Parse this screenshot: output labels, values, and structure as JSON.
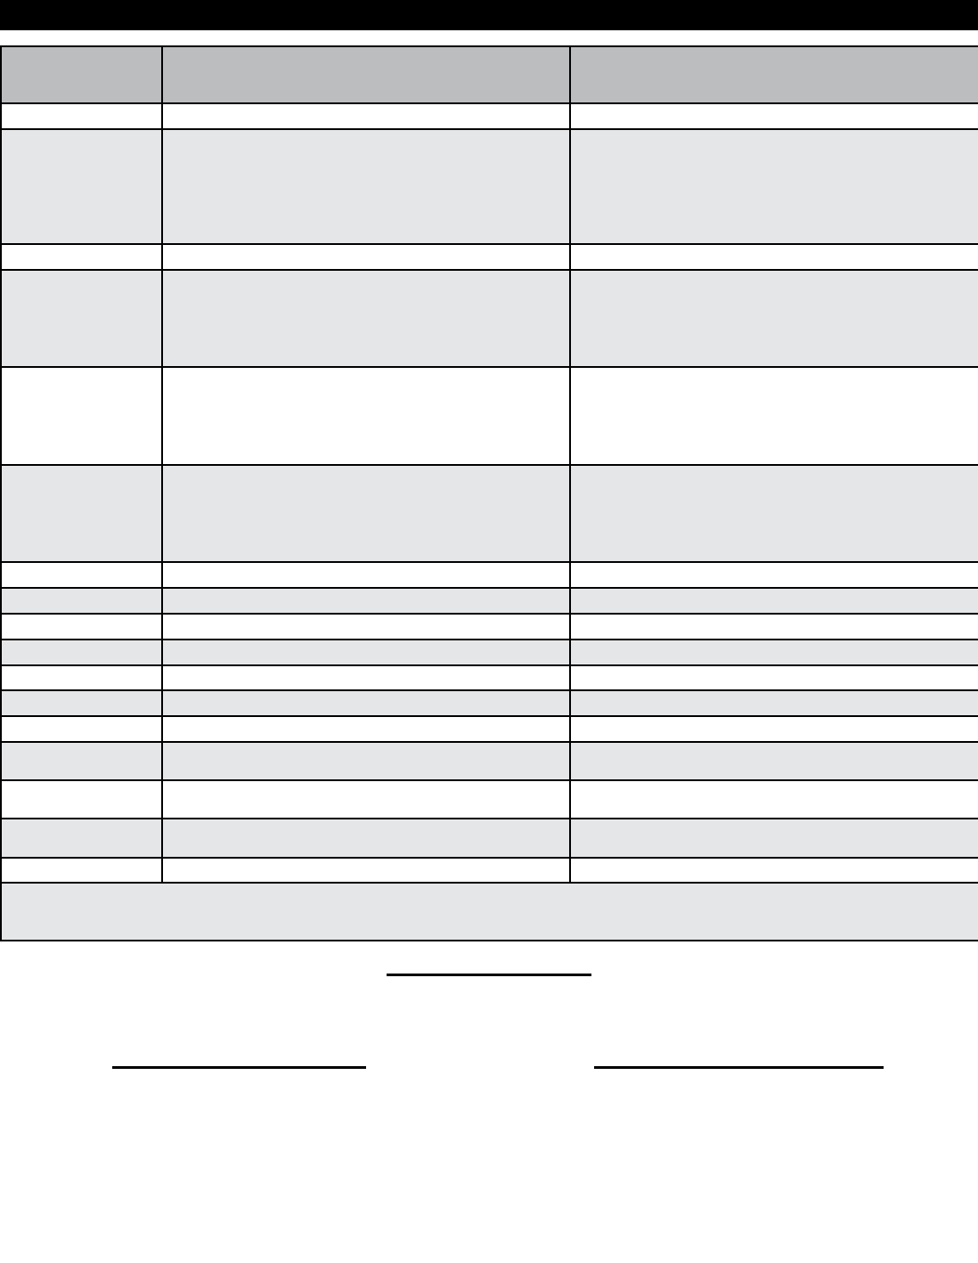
{
  "colors": {
    "header_bar": "#000000",
    "header_row": "#bcbdbf",
    "shaded_row": "#e5e6e8",
    "plain_row": "#ffffff"
  },
  "table": {
    "headers": [
      "",
      "",
      ""
    ],
    "rows": [
      [
        "",
        "",
        ""
      ],
      [
        "",
        "",
        ""
      ],
      [
        "",
        "",
        ""
      ],
      [
        "",
        "",
        ""
      ],
      [
        "",
        "",
        ""
      ],
      [
        "",
        "",
        ""
      ],
      [
        "",
        "",
        ""
      ],
      [
        "",
        "",
        ""
      ],
      [
        "",
        "",
        ""
      ],
      [
        "",
        "",
        ""
      ],
      [
        "",
        "",
        ""
      ],
      [
        "",
        "",
        ""
      ],
      [
        "",
        "",
        ""
      ],
      [
        "",
        "",
        ""
      ],
      [
        "",
        "",
        ""
      ],
      [
        "",
        "",
        ""
      ],
      [
        "",
        "",
        ""
      ]
    ],
    "footer": ""
  },
  "signatures": [
    "",
    "",
    ""
  ]
}
